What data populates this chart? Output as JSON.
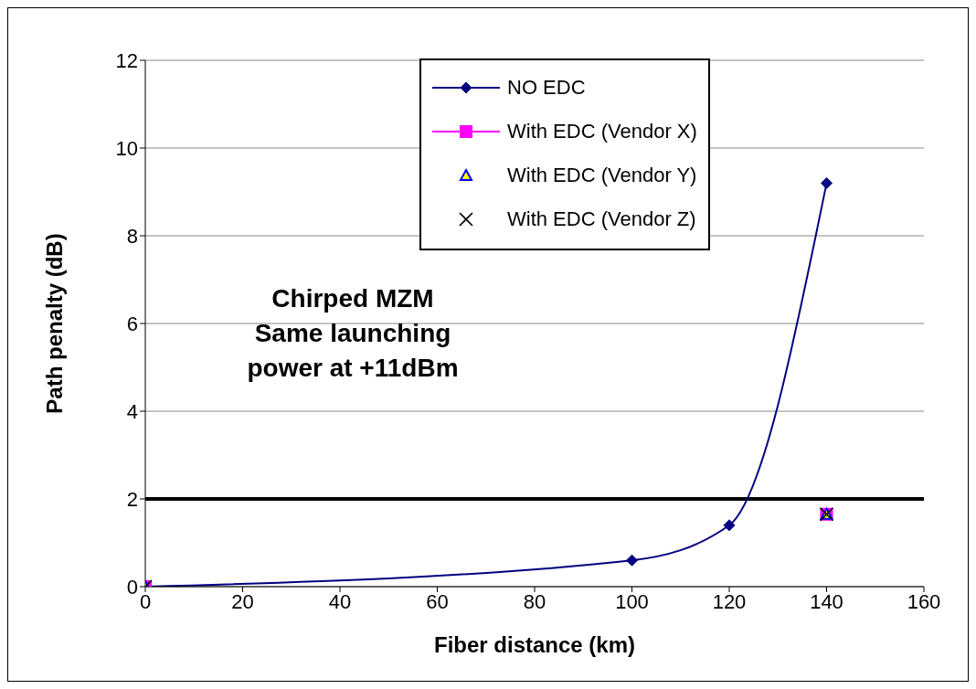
{
  "chart_data": {
    "type": "line",
    "xlabel": "Fiber distance (km)",
    "ylabel": "Path penalty (dB)",
    "xlim": [
      0,
      160
    ],
    "xticks": [
      0,
      20,
      40,
      60,
      80,
      100,
      120,
      140,
      160
    ],
    "ylim": [
      0,
      12
    ],
    "yticks": [
      0,
      2,
      4,
      6,
      8,
      10,
      12
    ],
    "grid": "y",
    "legend": "top",
    "series": [
      {
        "name": "NO EDC",
        "color": "#000080",
        "marker": "diamond",
        "line_style": "solid",
        "x": [
          0,
          100,
          120,
          140
        ],
        "values": [
          0,
          0.6,
          1.4,
          9.2
        ]
      },
      {
        "name": "With EDC (Vendor X)",
        "type": "scatter",
        "color": "#ff00ff",
        "marker": "square",
        "x": [
          0,
          140
        ],
        "values": [
          0,
          1.65
        ]
      },
      {
        "name": "With EDC (Vendor Y)",
        "type": "scatter",
        "color": "#ffff00",
        "marker": "triangle",
        "x": [
          0,
          140
        ],
        "values": [
          0,
          1.65
        ]
      },
      {
        "name": "With EDC (Vendor Z)",
        "type": "scatter",
        "color": "#000000",
        "marker": "cross",
        "x": [
          0,
          140
        ],
        "values": [
          0,
          1.65
        ]
      }
    ],
    "ref_lines": [
      {
        "axis": "y",
        "value": 2,
        "color": "#000000",
        "line_style": "solid"
      }
    ],
    "annotations": [
      "Chirped MZM\nSame launching\npower at +11dBm"
    ]
  }
}
